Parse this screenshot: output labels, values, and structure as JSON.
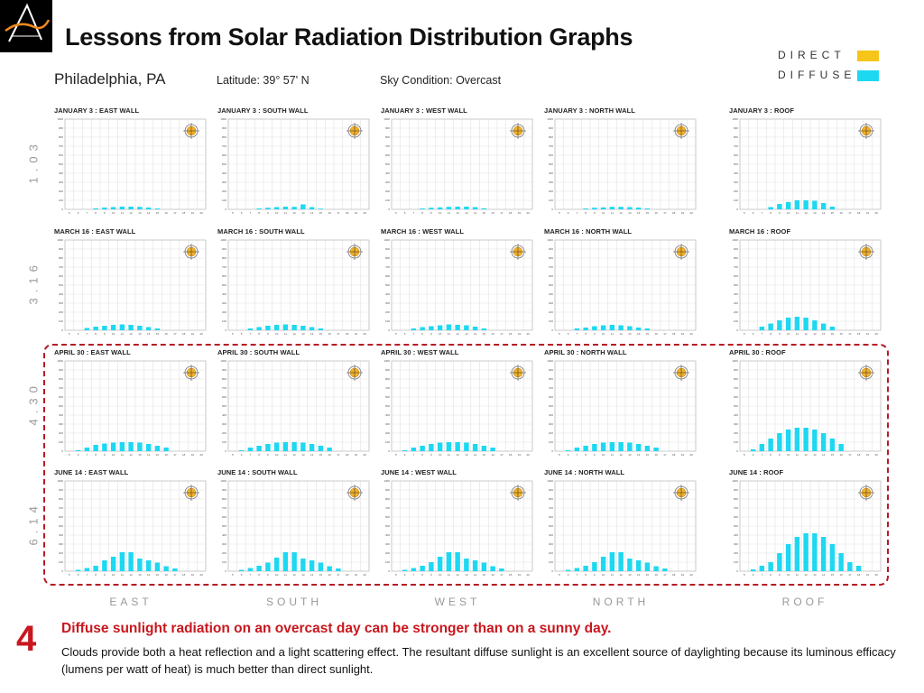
{
  "slide": {
    "title": "Lessons from Solar Radiation Distribution Graphs",
    "step_number": "4",
    "note_headline": "Diffuse sunlight radiation on an overcast day can be stronger than on a sunny day.",
    "note_body": "Clouds provide both a heat reflection and a light scattering effect.  The resultant diffuse sunlight is an excellent source of daylighting because its luminous efficacy (lumens per watt of heat) is much better than direct sunlight."
  },
  "legend": {
    "items": [
      {
        "label": "DIRECT",
        "color": "#f5c518"
      },
      {
        "label": "DIFFUSE",
        "color": "#1ed8f2"
      }
    ]
  },
  "header": {
    "city": "Philadelphia, PA",
    "latitude": "Latitude: 39° 57' N",
    "sky": "Sky Condition: Overcast"
  },
  "row_labels": [
    "1.03",
    "3.16",
    "4.30",
    "6.14"
  ],
  "column_labels": [
    "EAST",
    "SOUTH",
    "WEST",
    "NORTH",
    "ROOF"
  ],
  "colors": {
    "diffuse": "#1ed8f2",
    "direct": "#f5c518",
    "highlight": "#b51b24",
    "accent_red": "#c8171e"
  },
  "chart_data": {
    "type": "bar",
    "x": [
      "5",
      "6",
      "7",
      "8",
      "9",
      "10",
      "11",
      "12",
      "13",
      "14",
      "15",
      "16",
      "17",
      "18",
      "19",
      "20"
    ],
    "ylim": [
      0,
      1000
    ],
    "yticks": [
      "1000",
      "900",
      "800",
      "700",
      "600",
      "500",
      "400",
      "300",
      "200",
      "100",
      "0"
    ],
    "charts": [
      {
        "title": "JANUARY 3 : EAST WALL",
        "values": [
          0,
          0,
          0,
          12,
          20,
          25,
          30,
          30,
          28,
          20,
          10,
          0,
          0,
          0,
          0,
          0
        ]
      },
      {
        "title": "JANUARY 3 : SOUTH WALL",
        "values": [
          0,
          0,
          0,
          10,
          18,
          25,
          30,
          28,
          55,
          25,
          8,
          0,
          0,
          0,
          0,
          0
        ]
      },
      {
        "title": "JANUARY 3 : WEST WALL",
        "values": [
          0,
          0,
          0,
          10,
          18,
          22,
          28,
          30,
          30,
          25,
          12,
          0,
          0,
          0,
          0,
          0
        ]
      },
      {
        "title": "JANUARY 3 : NORTH WALL",
        "values": [
          0,
          0,
          0,
          10,
          18,
          22,
          28,
          28,
          25,
          20,
          10,
          0,
          0,
          0,
          0,
          0
        ]
      },
      {
        "title": "JANUARY 3 : ROOF",
        "values": [
          0,
          0,
          0,
          25,
          60,
          80,
          100,
          100,
          95,
          70,
          30,
          0,
          0,
          0,
          0,
          0
        ]
      },
      {
        "title": "MARCH 16 : EAST WALL",
        "values": [
          0,
          0,
          25,
          40,
          50,
          60,
          65,
          60,
          50,
          35,
          20,
          0,
          0,
          0,
          0,
          0
        ]
      },
      {
        "title": "MARCH 16 : SOUTH WALL",
        "values": [
          0,
          0,
          20,
          35,
          50,
          60,
          65,
          60,
          50,
          35,
          20,
          0,
          0,
          0,
          0,
          0
        ]
      },
      {
        "title": "MARCH 16 : WEST WALL",
        "values": [
          0,
          0,
          20,
          35,
          45,
          55,
          65,
          60,
          55,
          40,
          20,
          0,
          0,
          0,
          0,
          0
        ]
      },
      {
        "title": "MARCH 16 : NORTH WALL",
        "values": [
          0,
          0,
          20,
          30,
          45,
          55,
          60,
          55,
          45,
          30,
          20,
          0,
          0,
          0,
          0,
          0
        ]
      },
      {
        "title": "MARCH 16 : ROOF",
        "values": [
          0,
          0,
          40,
          75,
          110,
          140,
          150,
          140,
          110,
          75,
          40,
          0,
          0,
          0,
          0,
          0
        ]
      },
      {
        "title": "APRIL 30 : EAST WALL",
        "values": [
          0,
          10,
          40,
          70,
          85,
          95,
          100,
          100,
          95,
          80,
          60,
          40,
          0,
          0,
          0,
          0
        ]
      },
      {
        "title": "APRIL 30 : SOUTH WALL",
        "values": [
          0,
          10,
          40,
          60,
          80,
          95,
          100,
          100,
          95,
          80,
          60,
          40,
          0,
          0,
          0,
          0
        ]
      },
      {
        "title": "APRIL 30 : WEST WALL",
        "values": [
          0,
          10,
          40,
          60,
          80,
          95,
          100,
          100,
          95,
          80,
          60,
          40,
          0,
          0,
          0,
          0
        ]
      },
      {
        "title": "APRIL 30 : NORTH WALL",
        "values": [
          0,
          10,
          40,
          60,
          80,
          95,
          100,
          100,
          95,
          80,
          60,
          40,
          0,
          0,
          0,
          0
        ]
      },
      {
        "title": "APRIL 30 : ROOF",
        "values": [
          0,
          20,
          80,
          140,
          200,
          240,
          260,
          260,
          240,
          200,
          140,
          80,
          0,
          0,
          0,
          0
        ]
      },
      {
        "title": "JUNE 14 : EAST WALL",
        "values": [
          0,
          15,
          35,
          60,
          120,
          160,
          210,
          210,
          140,
          120,
          95,
          55,
          30,
          0,
          0,
          0
        ]
      },
      {
        "title": "JUNE 14 : SOUTH WALL",
        "values": [
          0,
          15,
          35,
          60,
          95,
          150,
          210,
          210,
          140,
          120,
          95,
          55,
          30,
          0,
          0,
          0
        ]
      },
      {
        "title": "JUNE 14 : WEST WALL",
        "values": [
          0,
          15,
          35,
          60,
          100,
          160,
          210,
          210,
          140,
          120,
          95,
          55,
          30,
          0,
          0,
          0
        ]
      },
      {
        "title": "JUNE 14 : NORTH WALL",
        "values": [
          0,
          15,
          35,
          60,
          100,
          160,
          210,
          210,
          140,
          120,
          95,
          55,
          30,
          0,
          0,
          0
        ]
      },
      {
        "title": "JUNE 14 : ROOF",
        "values": [
          0,
          20,
          60,
          100,
          200,
          300,
          380,
          420,
          420,
          380,
          300,
          200,
          100,
          60,
          0,
          0
        ]
      }
    ]
  }
}
